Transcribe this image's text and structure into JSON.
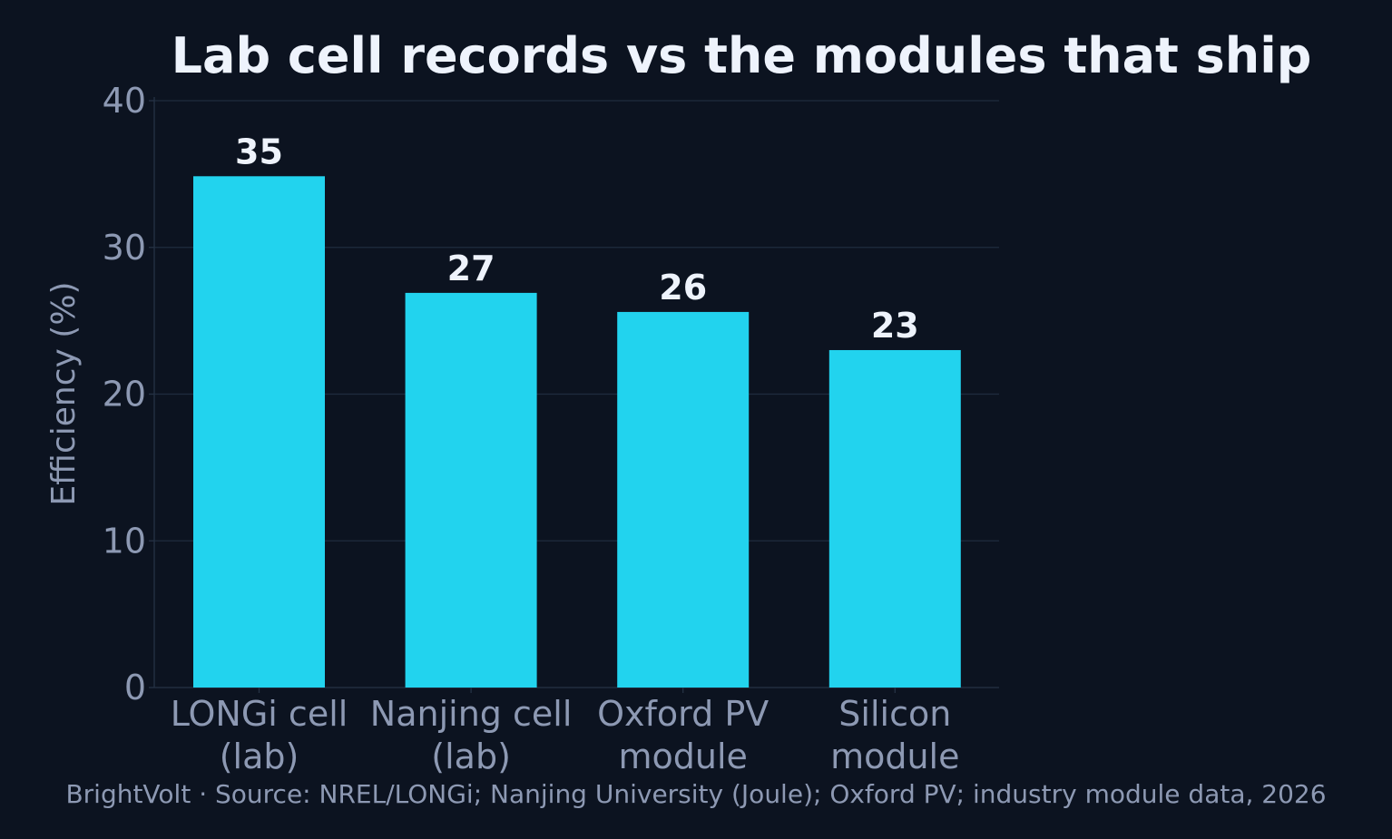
{
  "chart_data": {
    "type": "bar",
    "title": "Lab cell records vs the modules that ship",
    "ylabel": "Efficiency (%)",
    "xlabel": "",
    "categories": [
      [
        "LONGi cell",
        "(lab)"
      ],
      [
        "Nanjing cell",
        "(lab)"
      ],
      [
        "Oxford PV",
        "module"
      ],
      [
        "Silicon",
        "module"
      ]
    ],
    "values": [
      34.85,
      26.9,
      25.6,
      23.0
    ],
    "data_labels": [
      "35",
      "27",
      "26",
      "23"
    ],
    "ylim": [
      0,
      40
    ],
    "yticks": [
      0,
      10,
      20,
      30,
      40
    ],
    "grid": true,
    "bar_color": "#22d3ee",
    "grid_color": "#1f2b3e",
    "axis_color": "#253245",
    "background": "#0c1320"
  },
  "footer": "BrightVolt  ·  Source: NREL/LONGi; Nanjing University (Joule); Oxford PV; industry module data, 2026"
}
